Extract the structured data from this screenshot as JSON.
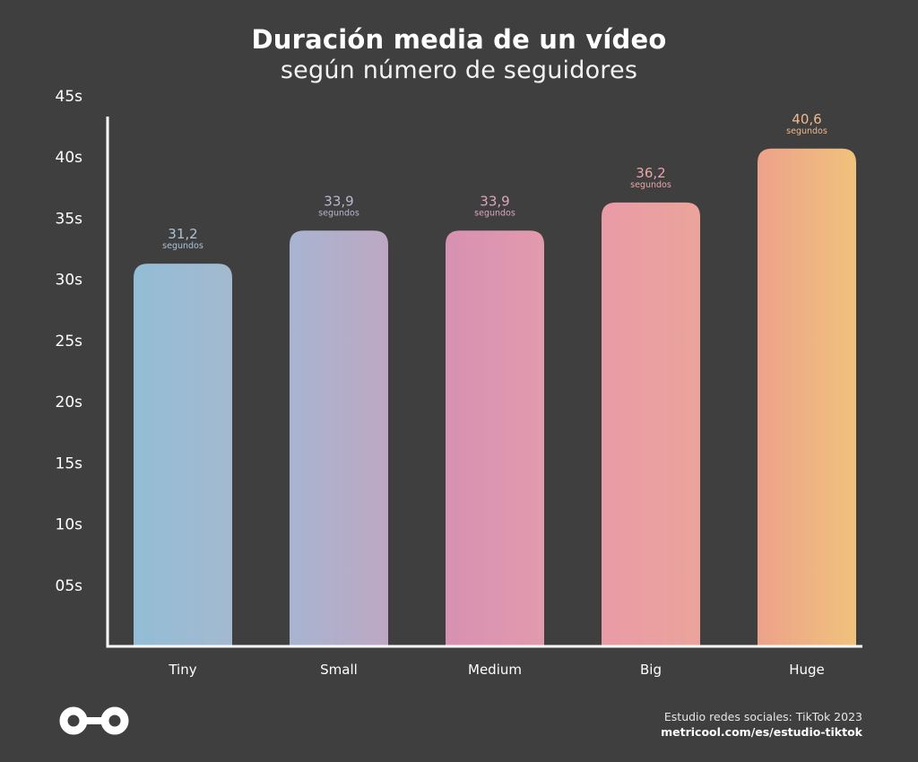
{
  "header": {
    "title": "Duración media de un vídeo",
    "subtitle": "según número de seguidores"
  },
  "chart_data": {
    "type": "bar",
    "title": "Duración media de un vídeo",
    "subtitle": "según número de seguidores",
    "categories": [
      "Tiny",
      "Small",
      "Medium",
      "Big",
      "Huge"
    ],
    "values": [
      31.2,
      33.9,
      33.9,
      36.2,
      40.6
    ],
    "value_labels": [
      "31,2",
      "33,9",
      "33,9",
      "36,2",
      "40,6"
    ],
    "value_unit_label": "segundos",
    "ylim": [
      0,
      45
    ],
    "y_ticks": [
      5,
      10,
      15,
      20,
      25,
      30,
      35,
      40,
      45
    ],
    "y_tick_labels": [
      "05s",
      "10s",
      "15s",
      "20s",
      "25s",
      "30s",
      "35s",
      "40s",
      "45s"
    ],
    "grid": false,
    "colors": {
      "background": "#3f3f3f",
      "axis": "#ffffff",
      "tick_text": "#ffffff",
      "bars": [
        [
          "#93bdd6",
          "#a3b9cf"
        ],
        [
          "#a8b4d0",
          "#bda8c4"
        ],
        [
          "#d791b1",
          "#e29aae"
        ],
        [
          "#e99ba6",
          "#eba49b"
        ],
        [
          "#eda28b",
          "#f0c27c"
        ]
      ],
      "labels": [
        "#a9c3d6",
        "#bcb6d0",
        "#e0a3bd",
        "#eca4a8",
        "#f0b98c"
      ]
    }
  },
  "footer": {
    "logo_icon": "infinity-logo-icon",
    "source_line": "Estudio redes sociales: TikTok 2023",
    "url_line": "metricool.com/es/estudio-tiktok"
  }
}
